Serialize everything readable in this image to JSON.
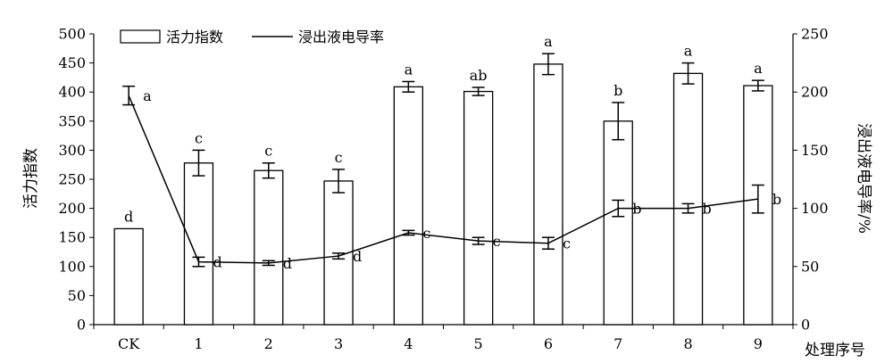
{
  "chart_data": {
    "type": "bar",
    "categories": [
      "CK",
      "1",
      "2",
      "3",
      "4",
      "5",
      "6",
      "7",
      "8",
      "9"
    ],
    "xlabel": "处理序号",
    "legend_position": "top-left",
    "grid": false,
    "axes": {
      "y_left": {
        "label": "活力指数",
        "range": [
          0,
          500
        ],
        "ticks": [
          0,
          50,
          100,
          150,
          200,
          250,
          300,
          350,
          400,
          450,
          500
        ]
      },
      "y_right": {
        "label": "浸出液电导率/%",
        "range": [
          0,
          250
        ],
        "ticks": [
          0,
          50,
          100,
          150,
          200,
          250
        ]
      }
    },
    "series": [
      {
        "name": "活力指数",
        "type": "bar",
        "axis": "left",
        "values": [
          165,
          278,
          265,
          247,
          409,
          401,
          448,
          350,
          432,
          411
        ],
        "errors": [
          null,
          22,
          13,
          20,
          9,
          7,
          18,
          32,
          18,
          9
        ],
        "labels": [
          "d",
          "c",
          "c",
          "c",
          "a",
          "ab",
          "a",
          "b",
          "a",
          "a"
        ]
      },
      {
        "name": "浸出液电导率",
        "type": "line",
        "axis": "right",
        "values": [
          197,
          54,
          53,
          59,
          79,
          72,
          70,
          100,
          100,
          108
        ],
        "errors": [
          8,
          4,
          2,
          2.5,
          2,
          3,
          5,
          7,
          4,
          12
        ],
        "labels": [
          "a",
          "d",
          "d",
          "d",
          "c",
          "c",
          "c",
          "b",
          "b",
          "b"
        ]
      }
    ]
  }
}
